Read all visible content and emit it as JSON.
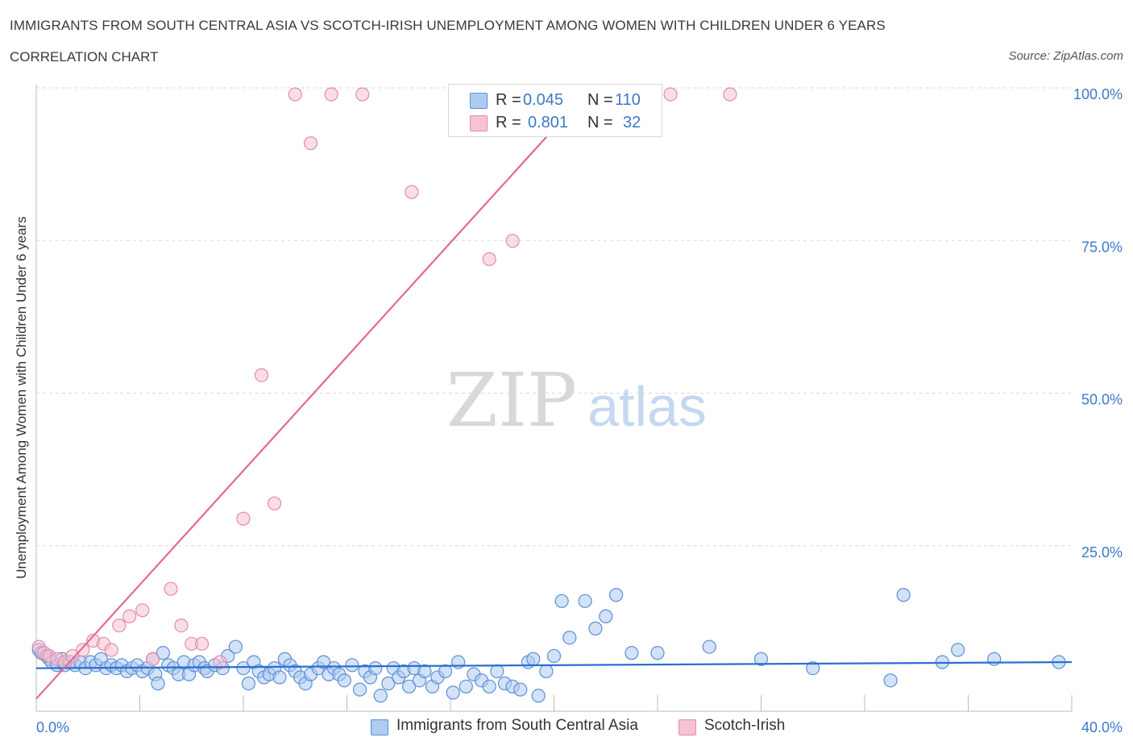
{
  "header": {
    "title": "IMMIGRANTS FROM SOUTH CENTRAL ASIA VS SCOTCH-IRISH UNEMPLOYMENT AMONG WOMEN WITH CHILDREN UNDER 6 YEARS",
    "subtitle": "CORRELATION CHART",
    "source": "Source: ZipAtlas.com"
  },
  "colors": {
    "blue_fill": "#aecbf0",
    "blue_stroke": "#5b8fd6",
    "blue_line": "#2a6fcf",
    "pink_fill": "#f6c3d3",
    "pink_stroke": "#e58aa6",
    "pink_line": "#e36a92",
    "axis_label": "#3c78c8",
    "grid": "#d9d9d9"
  },
  "legend": {
    "rows": [
      {
        "r_label": "R =",
        "r_value": "0.045",
        "n_label": "N =",
        "n_value": "110",
        "color": "#aecbf0"
      },
      {
        "r_label": "R =",
        "r_value": "0.801",
        "n_label": "N =",
        "n_value": "32",
        "color": "#f6c3d3"
      }
    ]
  },
  "bottom_legend": [
    {
      "label": "Immigrants from South Central Asia",
      "color": "#aecbf0"
    },
    {
      "label": "Scotch-Irish",
      "color": "#f6c3d3"
    }
  ],
  "watermark": {
    "zip": "ZIP",
    "atlas": "atlas"
  },
  "chart_data": {
    "type": "scatter",
    "title": "IMMIGRANTS FROM SOUTH CENTRAL ASIA VS SCOTCH-IRISH UNEMPLOYMENT AMONG WOMEN WITH CHILDREN UNDER 6 YEARS",
    "ylabel": "Unemployment Among Women with Children Under 6 years",
    "xlabel": "",
    "xlim": [
      0,
      40
    ],
    "ylim": [
      0,
      100
    ],
    "x_tick_labels": [
      "0.0%",
      "40.0%"
    ],
    "y_tick_labels": [
      "25.0%",
      "50.0%",
      "75.0%",
      "100.0%"
    ],
    "y_ticks": [
      25,
      50,
      75,
      100
    ],
    "grid": true,
    "legend_position": "top-center",
    "series": [
      {
        "name": "Immigrants from South Central Asia",
        "color": "#aecbf0",
        "trend": {
          "x": [
            0,
            40
          ],
          "y": [
            6.0,
            7.0
          ]
        },
        "points": [
          [
            0.1,
            9.0
          ],
          [
            0.2,
            8.5
          ],
          [
            0.4,
            8.0
          ],
          [
            0.5,
            7.5
          ],
          [
            0.6,
            7.0
          ],
          [
            0.8,
            6.5
          ],
          [
            1.0,
            7.5
          ],
          [
            1.1,
            6.5
          ],
          [
            1.3,
            7.0
          ],
          [
            1.5,
            6.5
          ],
          [
            1.7,
            7.0
          ],
          [
            1.9,
            6.0
          ],
          [
            2.1,
            7.0
          ],
          [
            2.3,
            6.5
          ],
          [
            2.5,
            7.5
          ],
          [
            2.7,
            6.0
          ],
          [
            2.9,
            6.5
          ],
          [
            3.1,
            6.0
          ],
          [
            3.3,
            6.5
          ],
          [
            3.5,
            5.5
          ],
          [
            3.7,
            6.0
          ],
          [
            3.9,
            6.5
          ],
          [
            4.1,
            5.5
          ],
          [
            4.3,
            6.0
          ],
          [
            4.5,
            7.5
          ],
          [
            4.6,
            5.0
          ],
          [
            4.7,
            3.5
          ],
          [
            4.9,
            8.5
          ],
          [
            5.1,
            6.5
          ],
          [
            5.3,
            6.0
          ],
          [
            5.5,
            5.0
          ],
          [
            5.7,
            7.0
          ],
          [
            5.9,
            5.0
          ],
          [
            6.1,
            6.5
          ],
          [
            6.3,
            7.0
          ],
          [
            6.5,
            6.0
          ],
          [
            6.6,
            5.5
          ],
          [
            6.9,
            6.5
          ],
          [
            7.2,
            6.0
          ],
          [
            7.4,
            8.0
          ],
          [
            7.7,
            9.5
          ],
          [
            8.0,
            6.0
          ],
          [
            8.2,
            3.5
          ],
          [
            8.4,
            7.0
          ],
          [
            8.6,
            5.5
          ],
          [
            8.8,
            4.5
          ],
          [
            9.0,
            5.0
          ],
          [
            9.2,
            6.0
          ],
          [
            9.4,
            4.5
          ],
          [
            9.6,
            7.5
          ],
          [
            9.8,
            6.5
          ],
          [
            10.0,
            5.5
          ],
          [
            10.2,
            4.5
          ],
          [
            10.4,
            3.5
          ],
          [
            10.6,
            5.0
          ],
          [
            10.9,
            6.0
          ],
          [
            11.1,
            7.0
          ],
          [
            11.3,
            5.0
          ],
          [
            11.5,
            6.0
          ],
          [
            11.7,
            5.0
          ],
          [
            11.9,
            4.0
          ],
          [
            12.2,
            6.5
          ],
          [
            12.5,
            2.5
          ],
          [
            12.7,
            5.5
          ],
          [
            12.9,
            4.5
          ],
          [
            13.1,
            6.0
          ],
          [
            13.3,
            1.5
          ],
          [
            13.6,
            3.5
          ],
          [
            13.8,
            6.0
          ],
          [
            14.0,
            4.5
          ],
          [
            14.2,
            5.5
          ],
          [
            14.4,
            3.0
          ],
          [
            14.6,
            6.0
          ],
          [
            14.8,
            4.0
          ],
          [
            15.0,
            5.5
          ],
          [
            15.3,
            3.0
          ],
          [
            15.5,
            4.5
          ],
          [
            15.8,
            5.5
          ],
          [
            16.1,
            2.0
          ],
          [
            16.3,
            7.0
          ],
          [
            16.6,
            3.0
          ],
          [
            16.9,
            5.0
          ],
          [
            17.2,
            4.0
          ],
          [
            17.5,
            3.0
          ],
          [
            17.8,
            5.5
          ],
          [
            18.1,
            3.5
          ],
          [
            18.4,
            3.0
          ],
          [
            18.7,
            2.5
          ],
          [
            19.0,
            7.0
          ],
          [
            19.2,
            7.5
          ],
          [
            19.4,
            1.5
          ],
          [
            19.7,
            5.5
          ],
          [
            20.0,
            8.0
          ],
          [
            20.3,
            17.0
          ],
          [
            20.6,
            11.0
          ],
          [
            21.2,
            17.0
          ],
          [
            21.6,
            12.5
          ],
          [
            22.0,
            14.5
          ],
          [
            22.4,
            18.0
          ],
          [
            23.0,
            8.5
          ],
          [
            24.0,
            8.5
          ],
          [
            26.0,
            9.5
          ],
          [
            28.0,
            7.5
          ],
          [
            30.0,
            6.0
          ],
          [
            33.0,
            4.0
          ],
          [
            33.5,
            18.0
          ],
          [
            35.0,
            7.0
          ],
          [
            35.6,
            9.0
          ],
          [
            37.0,
            7.5
          ],
          [
            39.5,
            7.0
          ]
        ]
      },
      {
        "name": "Scotch-Irish",
        "color": "#f6c3d3",
        "trend": {
          "x": [
            0,
            21.2
          ],
          "y": [
            1.0,
            100.0
          ]
        },
        "points": [
          [
            0.1,
            9.5
          ],
          [
            0.3,
            8.5
          ],
          [
            0.5,
            8.0
          ],
          [
            0.8,
            7.5
          ],
          [
            1.1,
            7.0
          ],
          [
            1.4,
            8.0
          ],
          [
            1.8,
            9.0
          ],
          [
            2.2,
            10.5
          ],
          [
            2.6,
            10.0
          ],
          [
            2.9,
            9.0
          ],
          [
            3.2,
            13.0
          ],
          [
            3.6,
            14.5
          ],
          [
            4.1,
            15.5
          ],
          [
            4.5,
            7.5
          ],
          [
            5.2,
            19.0
          ],
          [
            5.6,
            13.0
          ],
          [
            6.0,
            10.0
          ],
          [
            6.4,
            10.0
          ],
          [
            7.1,
            7.0
          ],
          [
            8.0,
            30.5
          ],
          [
            8.7,
            54.0
          ],
          [
            9.2,
            33.0
          ],
          [
            10.0,
            100.0
          ],
          [
            10.6,
            92.0
          ],
          [
            11.4,
            100.0
          ],
          [
            12.6,
            100.0
          ],
          [
            14.5,
            84.0
          ],
          [
            16.5,
            100.0
          ],
          [
            17.5,
            73.0
          ],
          [
            18.4,
            76.0
          ],
          [
            24.5,
            100.0
          ],
          [
            26.8,
            100.0
          ]
        ]
      }
    ]
  }
}
